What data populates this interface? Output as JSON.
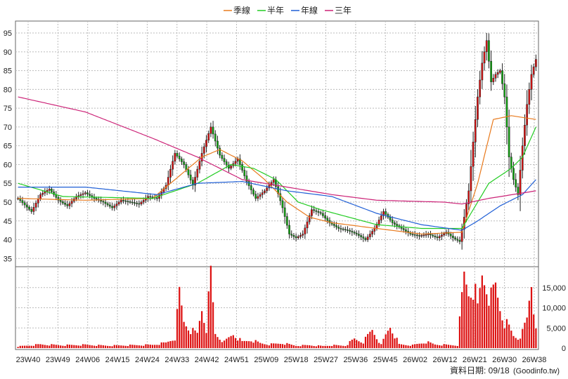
{
  "chart_data": {
    "type": "candlestick",
    "legend": {
      "placement": "top-center",
      "items": [
        {
          "name": "季線",
          "color": "#e87a1e"
        },
        {
          "name": "半年",
          "color": "#22cc22"
        },
        {
          "name": "年線",
          "color": "#1f5fd6"
        },
        {
          "name": "三年",
          "color": "#cc2277"
        }
      ]
    },
    "price_axis": {
      "range": [
        33,
        98
      ],
      "ticks": [
        35,
        40,
        45,
        50,
        55,
        60,
        65,
        70,
        75,
        80,
        85,
        90,
        95
      ],
      "side": "left"
    },
    "volume_axis": {
      "range": [
        0,
        20000
      ],
      "ticks": [
        0,
        5000,
        10000,
        15000
      ],
      "tick_labels": [
        "0",
        "5,000",
        "10,000",
        "15,000"
      ],
      "side": "right"
    },
    "x_ticks": [
      "23W40",
      "23W49",
      "24W06",
      "24W15",
      "24W24",
      "24W33",
      "24W42",
      "24W51",
      "25W09",
      "25W18",
      "25W27",
      "25W36",
      "25W45",
      "26W02",
      "26W12",
      "26W21",
      "26W30",
      "26W38"
    ],
    "grid": true,
    "colors": {
      "up": "#dd1111",
      "down": "#11aa11",
      "volume": "#dd1111",
      "grid": "#bbbbbb"
    },
    "price_anchors": [
      [
        0,
        51
      ],
      [
        6,
        47.5
      ],
      [
        10,
        52
      ],
      [
        14,
        53.5
      ],
      [
        18,
        50.5
      ],
      [
        22,
        49
      ],
      [
        26,
        51.5
      ],
      [
        30,
        52.5
      ],
      [
        34,
        51
      ],
      [
        38,
        50
      ],
      [
        42,
        48.5
      ],
      [
        46,
        50.5
      ],
      [
        50,
        50
      ],
      [
        54,
        49.5
      ],
      [
        58,
        51.5
      ],
      [
        62,
        51
      ],
      [
        66,
        54.5
      ],
      [
        70,
        63
      ],
      [
        74,
        60
      ],
      [
        78,
        54.5
      ],
      [
        82,
        63
      ],
      [
        86,
        70
      ],
      [
        90,
        62.5
      ],
      [
        94,
        59
      ],
      [
        98,
        61.5
      ],
      [
        102,
        55.5
      ],
      [
        106,
        51
      ],
      [
        110,
        53
      ],
      [
        114,
        56
      ],
      [
        118,
        48.5
      ],
      [
        121,
        41.5
      ],
      [
        124,
        40.5
      ],
      [
        127,
        41.5
      ],
      [
        131,
        48
      ],
      [
        135,
        47
      ],
      [
        139,
        44.5
      ],
      [
        143,
        43
      ],
      [
        147,
        42.5
      ],
      [
        151,
        41.5
      ],
      [
        155,
        40
      ],
      [
        159,
        43
      ],
      [
        163,
        47.5
      ],
      [
        167,
        44.5
      ],
      [
        171,
        43
      ],
      [
        175,
        41.5
      ],
      [
        179,
        41
      ],
      [
        183,
        41.5
      ],
      [
        187,
        40.5
      ],
      [
        191,
        42
      ],
      [
        194,
        40.5
      ],
      [
        197,
        39.5
      ],
      [
        199,
        46
      ],
      [
        201,
        53
      ],
      [
        203,
        66
      ],
      [
        205,
        78
      ],
      [
        207,
        87
      ],
      [
        209,
        93
      ],
      [
        211,
        82
      ],
      [
        213,
        84
      ],
      [
        215,
        85
      ],
      [
        217,
        78
      ],
      [
        219,
        62
      ],
      [
        221,
        56
      ],
      [
        223,
        52
      ],
      [
        225,
        65
      ],
      [
        227,
        76
      ],
      [
        229,
        84
      ],
      [
        231,
        88
      ]
    ],
    "volume_anchors": [
      [
        0,
        400
      ],
      [
        10,
        900
      ],
      [
        20,
        700
      ],
      [
        30,
        800
      ],
      [
        40,
        600
      ],
      [
        50,
        700
      ],
      [
        60,
        800
      ],
      [
        66,
        1300
      ],
      [
        70,
        2500
      ],
      [
        72,
        13000
      ],
      [
        74,
        6500
      ],
      [
        78,
        4000
      ],
      [
        80,
        3500
      ],
      [
        82,
        10000
      ],
      [
        84,
        5000
      ],
      [
        86,
        17500
      ],
      [
        88,
        3500
      ],
      [
        92,
        1500
      ],
      [
        96,
        3500
      ],
      [
        100,
        1500
      ],
      [
        104,
        2000
      ],
      [
        108,
        1200
      ],
      [
        112,
        900
      ],
      [
        118,
        1200
      ],
      [
        124,
        600
      ],
      [
        130,
        700
      ],
      [
        136,
        500
      ],
      [
        140,
        700
      ],
      [
        146,
        600
      ],
      [
        150,
        2200
      ],
      [
        154,
        1500
      ],
      [
        158,
        4500
      ],
      [
        162,
        800
      ],
      [
        166,
        5500
      ],
      [
        170,
        900
      ],
      [
        176,
        700
      ],
      [
        182,
        1500
      ],
      [
        186,
        900
      ],
      [
        190,
        800
      ],
      [
        196,
        700
      ],
      [
        199,
        17500
      ],
      [
        201,
        14000
      ],
      [
        203,
        16000
      ],
      [
        205,
        9500
      ],
      [
        207,
        18000
      ],
      [
        209,
        16000
      ],
      [
        211,
        12000
      ],
      [
        213,
        15000
      ],
      [
        215,
        10000
      ],
      [
        217,
        6500
      ],
      [
        219,
        5000
      ],
      [
        221,
        3000
      ],
      [
        223,
        2500
      ],
      [
        225,
        3800
      ],
      [
        227,
        7000
      ],
      [
        229,
        16500
      ],
      [
        230,
        10000
      ],
      [
        231,
        6500
      ]
    ],
    "ma_anchors": {
      "季線": [
        [
          0,
          51
        ],
        [
          30,
          50.5
        ],
        [
          60,
          51
        ],
        [
          70,
          56
        ],
        [
          82,
          62
        ],
        [
          90,
          64
        ],
        [
          100,
          61
        ],
        [
          110,
          56
        ],
        [
          120,
          50
        ],
        [
          130,
          46
        ],
        [
          140,
          44.5
        ],
        [
          160,
          43
        ],
        [
          180,
          41.5
        ],
        [
          198,
          42
        ],
        [
          205,
          55
        ],
        [
          212,
          72
        ],
        [
          220,
          73
        ],
        [
          231,
          72
        ]
      ],
      "半年": [
        [
          0,
          55
        ],
        [
          20,
          51.5
        ],
        [
          60,
          51
        ],
        [
          80,
          55
        ],
        [
          95,
          60
        ],
        [
          105,
          59
        ],
        [
          115,
          56
        ],
        [
          125,
          50
        ],
        [
          135,
          48
        ],
        [
          160,
          44
        ],
        [
          180,
          43
        ],
        [
          198,
          43
        ],
        [
          210,
          55
        ],
        [
          220,
          59
        ],
        [
          225,
          62
        ],
        [
          231,
          70
        ]
      ],
      "年線": [
        [
          0,
          54
        ],
        [
          30,
          54
        ],
        [
          62,
          52
        ],
        [
          80,
          55
        ],
        [
          100,
          55.5
        ],
        [
          120,
          53
        ],
        [
          140,
          51.5
        ],
        [
          160,
          47
        ],
        [
          180,
          44
        ],
        [
          198,
          42.5
        ],
        [
          205,
          45
        ],
        [
          215,
          49
        ],
        [
          225,
          52
        ],
        [
          231,
          56
        ]
      ],
      "三年": [
        [
          0,
          78
        ],
        [
          30,
          74
        ],
        [
          60,
          67
        ],
        [
          80,
          62
        ],
        [
          100,
          56
        ],
        [
          120,
          54
        ],
        [
          140,
          52
        ],
        [
          160,
          50.5
        ],
        [
          190,
          50
        ],
        [
          198,
          49.5
        ],
        [
          210,
          51
        ],
        [
          231,
          53
        ]
      ]
    }
  },
  "footer": {
    "date_label": "資料日期: 09/18",
    "source": "(Goodinfo.tw)"
  }
}
